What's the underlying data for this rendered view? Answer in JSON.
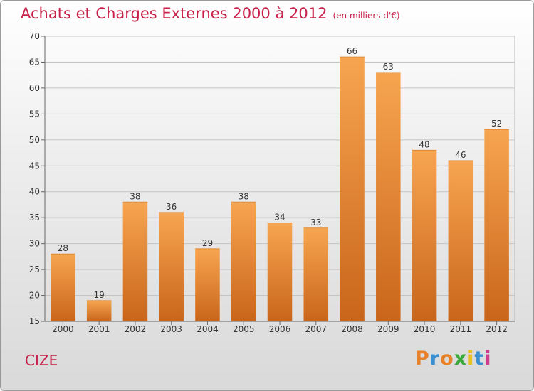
{
  "header": {
    "title": "Achats et Charges Externes 2000 à 2012",
    "subtitle": "(en milliers d'€)"
  },
  "footer": {
    "commune": "CIZE",
    "logo_letters": [
      "P",
      "r",
      "o",
      "x",
      "i",
      "t",
      "i"
    ],
    "logo_colors": [
      "#e8822a",
      "#3a8fd0",
      "#e8822a",
      "#3aa83a",
      "#e8c020",
      "#3a8fd0",
      "#d03a8f"
    ]
  },
  "colors": {
    "bar_top": "#f7a550",
    "bar_bottom": "#c9651a",
    "accent": "#c8204a"
  },
  "chart_data": {
    "type": "bar",
    "title": "Achats et Charges Externes 2000 à 2012",
    "subtitle": "(en milliers d'€)",
    "categories": [
      "2000",
      "2001",
      "2002",
      "2003",
      "2004",
      "2005",
      "2006",
      "2007",
      "2008",
      "2009",
      "2010",
      "2011",
      "2012"
    ],
    "values": [
      28,
      19,
      38,
      36,
      29,
      38,
      34,
      33,
      66,
      63,
      48,
      46,
      52
    ],
    "ylim": [
      15,
      70
    ],
    "yticks": [
      15,
      20,
      25,
      30,
      35,
      40,
      45,
      50,
      55,
      60,
      65,
      70
    ],
    "grid": true,
    "xlabel": "",
    "ylabel": ""
  }
}
